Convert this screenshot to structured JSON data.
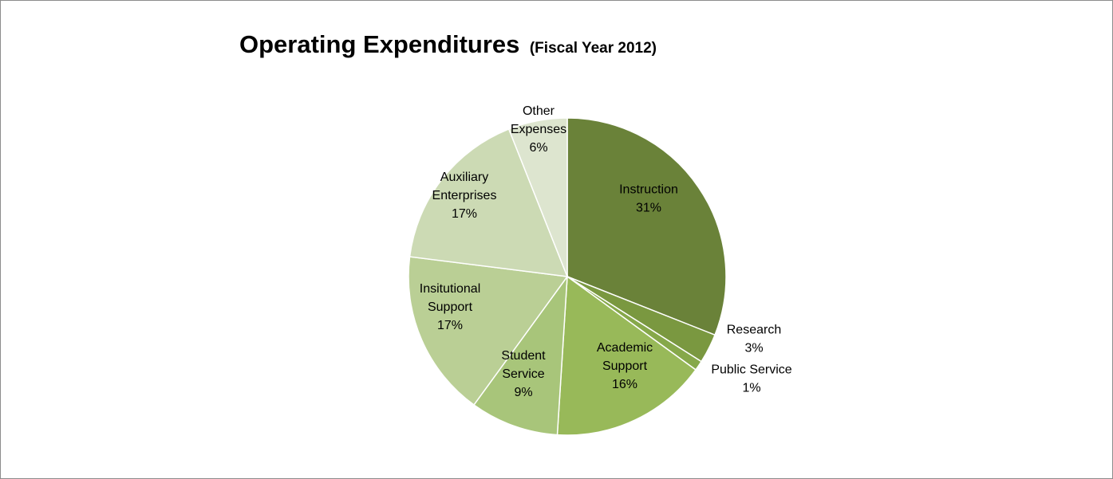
{
  "chart_data": {
    "type": "pie",
    "title": "Operating Expenditures",
    "subtitle": "(Fiscal Year 2012)",
    "slices": [
      {
        "label": [
          "Instruction"
        ],
        "percent_label": "31%",
        "value": 31,
        "color": "#6a8239"
      },
      {
        "label": [
          "Research"
        ],
        "percent_label": "3%",
        "value": 3,
        "color": "#7a9840"
      },
      {
        "label": [
          "Public Service"
        ],
        "percent_label": "1%",
        "value": 1,
        "color": "#86a84a"
      },
      {
        "label": [
          "Academic",
          "Support"
        ],
        "percent_label": "16%",
        "value": 16,
        "color": "#98b959"
      },
      {
        "label": [
          "Student",
          "Service"
        ],
        "percent_label": "9%",
        "value": 9,
        "color": "#a8c57a"
      },
      {
        "label": [
          "Insitutional",
          "Support"
        ],
        "percent_label": "17%",
        "value": 17,
        "color": "#bacf95"
      },
      {
        "label": [
          "Auxiliary",
          "Enterprises"
        ],
        "percent_label": "17%",
        "value": 17,
        "color": "#ccdab4"
      },
      {
        "label": [
          "Other",
          "Expenses"
        ],
        "percent_label": "6%",
        "value": 6,
        "color": "#dde5cf"
      }
    ],
    "legend": "none",
    "data_labels": "category and percent"
  }
}
